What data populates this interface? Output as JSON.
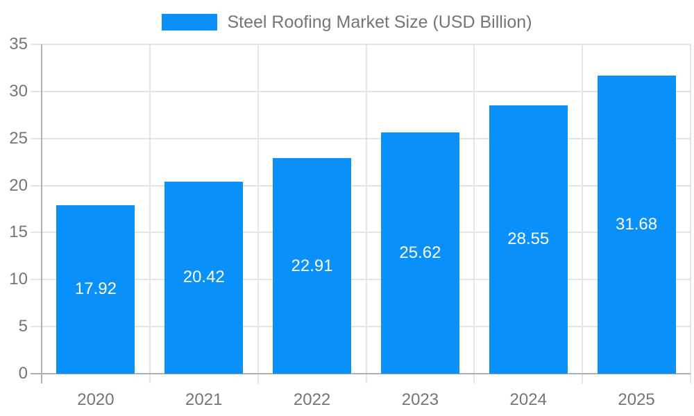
{
  "chart_data": {
    "type": "bar",
    "title": "Steel Roofing Market Size (USD Billion)",
    "legend": {
      "label": "Steel Roofing Market Size (USD Billion)",
      "position": "top-center"
    },
    "categories": [
      "2020",
      "2021",
      "2022",
      "2023",
      "2024",
      "2025"
    ],
    "values": [
      17.92,
      20.42,
      22.91,
      25.62,
      28.55,
      31.68
    ],
    "value_labels": [
      "17.92",
      "20.42",
      "22.91",
      "25.62",
      "28.55",
      "31.68"
    ],
    "xlabel": "",
    "ylabel": "",
    "ylim": [
      0,
      35
    ],
    "yticks": [
      0,
      5,
      10,
      15,
      20,
      25,
      30,
      35
    ],
    "ytick_labels": [
      "0",
      "5",
      "10",
      "15",
      "20",
      "25",
      "30",
      "35"
    ],
    "grid": true,
    "value_label_position": "center-of-bar",
    "colors": {
      "bar": "#0a90fa",
      "value_text": "#ffffff",
      "axis_text": "#757575",
      "gridline": "#e4e4e4",
      "axis_line": "#b0b0b0",
      "background": "#ffffff"
    }
  }
}
